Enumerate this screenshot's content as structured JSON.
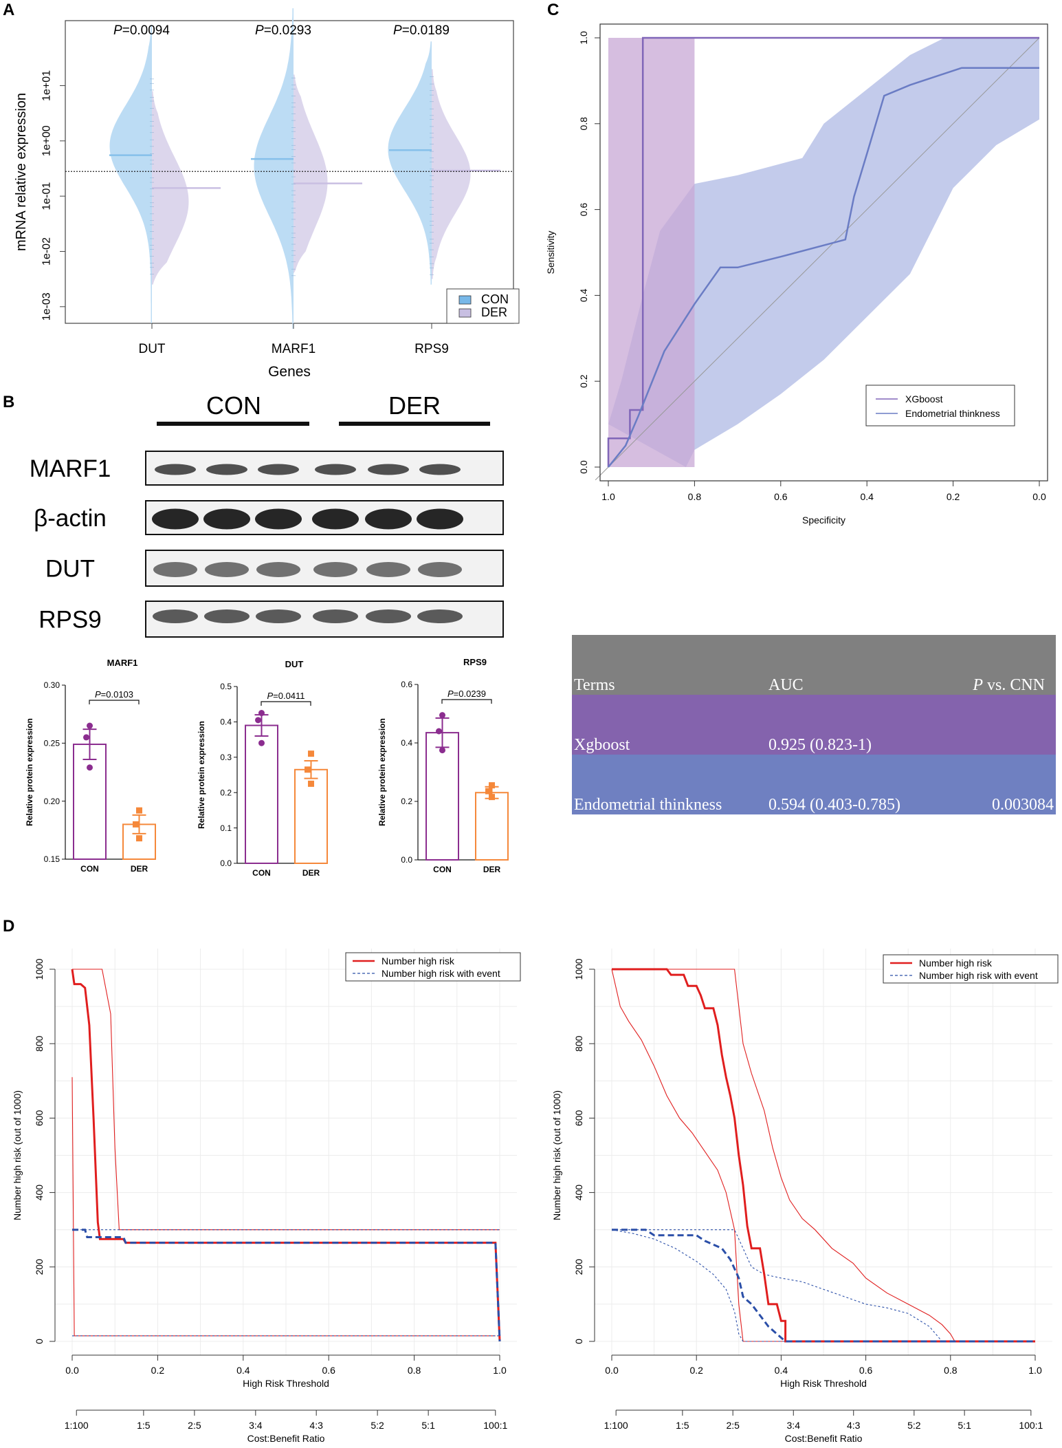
{
  "panel_labels": {
    "a": "A",
    "b": "B",
    "c": "C",
    "d": "D"
  },
  "chart_data": [
    {
      "id": "A",
      "type": "violin",
      "title": "",
      "xlabel": "Genes",
      "ylabel": "mRNA relative expression",
      "yscale": "log10",
      "ylim": [
        0.0005,
        150
      ],
      "y_ticks": [
        "1e-03",
        "1e-02",
        "1e-01",
        "1e+00",
        "1e+01"
      ],
      "categories": [
        "DUT",
        "MARF1",
        "RPS9"
      ],
      "pvalues": [
        "0.0094",
        "0.0293",
        "0.0189"
      ],
      "p_prefix": "P",
      "reference_line": 0.28,
      "series": [
        {
          "name": "CON",
          "color": "#bcdcf4",
          "median_color": "#86c0ea",
          "medians": [
            0.55,
            0.47,
            0.68
          ]
        },
        {
          "name": "DER",
          "color": "#dcd6ec",
          "median_color": "#c9bfe2",
          "medians": [
            0.14,
            0.17,
            0.29
          ]
        }
      ],
      "legend": [
        "CON",
        "DER"
      ]
    },
    {
      "id": "B-blot",
      "type": "image",
      "groups": [
        "CON",
        "DER"
      ],
      "rows": [
        "MARF1",
        "β-actin",
        "DUT",
        "RPS9"
      ]
    },
    {
      "id": "B-bars",
      "type": "bar",
      "ylabel": "Relative protein expression",
      "categories": [
        "CON",
        "DER"
      ],
      "colors": [
        "#8b2d8f",
        "#f5883a"
      ],
      "panels": [
        {
          "title": "MARF1",
          "ylim": [
            0.15,
            0.3
          ],
          "ticks": [
            "0.15",
            "0.20",
            "0.25",
            "0.30"
          ],
          "tickvals": [
            0.15,
            0.2,
            0.25,
            0.3
          ],
          "means": [
            0.249,
            0.18
          ],
          "sem": [
            0.013,
            0.008
          ],
          "points": [
            [
              0.265,
              0.255,
              0.229
            ],
            [
              0.192,
              0.18,
              0.168
            ]
          ],
          "pvalue": "0.0103"
        },
        {
          "title": "DUT",
          "ylim": [
            0.0,
            0.5
          ],
          "ticks": [
            "0.0",
            "0.1",
            "0.2",
            "0.3",
            "0.4",
            "0.5"
          ],
          "tickvals": [
            0.0,
            0.1,
            0.2,
            0.3,
            0.4,
            0.5
          ],
          "means": [
            0.39,
            0.265
          ],
          "sem": [
            0.03,
            0.025
          ],
          "points": [
            [
              0.425,
              0.405,
              0.34
            ],
            [
              0.31,
              0.265,
              0.225
            ]
          ],
          "pvalue": "0.0411"
        },
        {
          "title": "RPS9",
          "ylim": [
            0.0,
            0.6
          ],
          "ticks": [
            "0.0",
            "0.2",
            "0.4",
            "0.6"
          ],
          "tickvals": [
            0.0,
            0.2,
            0.4,
            0.6
          ],
          "means": [
            0.435,
            0.23
          ],
          "sem": [
            0.05,
            0.02
          ],
          "points": [
            [
              0.495,
              0.44,
              0.375
            ],
            [
              0.255,
              0.235,
              0.215
            ]
          ],
          "pvalue": "0.0239"
        }
      ]
    },
    {
      "id": "C",
      "type": "line",
      "xlabel": "Specificity",
      "ylabel": "Sensitivity",
      "xlim": [
        1.0,
        0.0
      ],
      "ylim": [
        0.0,
        1.0
      ],
      "x_ticks": [
        "1.0",
        "0.8",
        "0.6",
        "0.4",
        "0.2",
        "0.0"
      ],
      "y_ticks": [
        "0.0",
        "0.2",
        "0.4",
        "0.6",
        "0.8",
        "1.0"
      ],
      "series": [
        {
          "name": "XGboost",
          "color": "#8066b8",
          "ci_color": "#c8a8d6",
          "points": [
            [
              1,
              0
            ],
            [
              1,
              0.067
            ],
            [
              0.95,
              0.067
            ],
            [
              0.95,
              0.133
            ],
            [
              0.92,
              0.133
            ],
            [
              0.92,
              1
            ],
            [
              0,
              1
            ]
          ],
          "ci_band": {
            "x": [
              1,
              0.8
            ],
            "low": 0,
            "high": 1
          }
        },
        {
          "name": "Endometrial thinkness",
          "color": "#6a7cc4",
          "ci_color": "#b8c2e8",
          "points": [
            [
              1,
              0
            ],
            [
              0.96,
              0.05
            ],
            [
              0.93,
              0.12
            ],
            [
              0.87,
              0.27
            ],
            [
              0.8,
              0.38
            ],
            [
              0.74,
              0.465
            ],
            [
              0.7,
              0.465
            ],
            [
              0.6,
              0.49
            ],
            [
              0.45,
              0.53
            ],
            [
              0.43,
              0.63
            ],
            [
              0.4,
              0.73
            ],
            [
              0.36,
              0.865
            ],
            [
              0.3,
              0.89
            ],
            [
              0.18,
              0.93
            ],
            [
              0,
              0.93
            ]
          ],
          "ci_upper": [
            [
              1,
              0.1
            ],
            [
              0.97,
              0.2
            ],
            [
              0.92,
              0.4
            ],
            [
              0.88,
              0.55
            ],
            [
              0.8,
              0.66
            ],
            [
              0.7,
              0.68
            ],
            [
              0.55,
              0.72
            ],
            [
              0.5,
              0.8
            ],
            [
              0.4,
              0.88
            ],
            [
              0.3,
              0.96
            ],
            [
              0.22,
              1
            ],
            [
              0,
              1
            ]
          ],
          "ci_lower": [
            [
              0.82,
              0
            ],
            [
              0.8,
              0.04
            ],
            [
              0.7,
              0.1
            ],
            [
              0.6,
              0.17
            ],
            [
              0.5,
              0.25
            ],
            [
              0.4,
              0.35
            ],
            [
              0.3,
              0.45
            ],
            [
              0.25,
              0.55
            ],
            [
              0.2,
              0.65
            ],
            [
              0.1,
              0.75
            ],
            [
              0,
              0.81
            ]
          ]
        }
      ],
      "legend": [
        "XGboost",
        "Endometrial thinkness"
      ]
    },
    {
      "id": "C-table",
      "type": "table",
      "columns": [
        "Terms",
        "AUC",
        "P",
        "vs. CNN"
      ],
      "rows": [
        {
          "term": "Xgboost",
          "auc": "0.925 (0.823-1)",
          "p": ""
        },
        {
          "term": "Endometrial thinkness",
          "auc": "0.594 (0.403-0.785)",
          "p": "0.003084"
        }
      ],
      "colors": {
        "header": "#808080",
        "row1": "#8463ad",
        "row2": "#6f80c1"
      }
    },
    {
      "id": "D-left",
      "type": "line",
      "xlabel": "High Risk Threshold",
      "ylabel": "Number high risk (out of 1000)",
      "x2label": "Cost:Benefit Ratio",
      "xlim": [
        0,
        1
      ],
      "ylim": [
        0,
        1000
      ],
      "x_ticks": [
        "0.0",
        "0.2",
        "0.4",
        "0.6",
        "0.8",
        "1.0"
      ],
      "y_ticks": [
        "0",
        "200",
        "400",
        "600",
        "800",
        "1000"
      ],
      "x2_ticks": [
        "1:100",
        "1:5",
        "2:5",
        "3:4",
        "4:3",
        "5:2",
        "5:1",
        "100:1"
      ],
      "series": [
        {
          "name": "Number high risk",
          "color": "#e01e1e",
          "points": [
            [
              0,
              1000
            ],
            [
              0.005,
              960
            ],
            [
              0.02,
              960
            ],
            [
              0.03,
              950
            ],
            [
              0.04,
              850
            ],
            [
              0.05,
              600
            ],
            [
              0.06,
              320
            ],
            [
              0.065,
              275
            ],
            [
              0.12,
              275
            ],
            [
              0.125,
              265
            ],
            [
              0.99,
              265
            ],
            [
              1,
              0
            ]
          ],
          "ci_upper": [
            [
              0,
              1000
            ],
            [
              0.07,
              1000
            ],
            [
              0.09,
              880
            ],
            [
              0.1,
              520
            ],
            [
              0.11,
              300
            ],
            [
              1,
              300
            ]
          ],
          "ci_lower": [
            [
              0,
              710
            ],
            [
              0.005,
              15
            ],
            [
              0.99,
              15
            ]
          ]
        },
        {
          "name": "Number high risk with event",
          "color": "#2b4fa8",
          "points": [
            [
              0,
              300
            ],
            [
              0.03,
              300
            ],
            [
              0.035,
              280
            ],
            [
              0.12,
              280
            ],
            [
              0.125,
              265
            ],
            [
              0.99,
              265
            ],
            [
              1,
              0
            ]
          ],
          "ci_upper": [
            [
              0,
              300
            ],
            [
              0.1,
              300
            ],
            [
              1,
              300
            ]
          ],
          "ci_lower": [
            [
              0,
              15
            ],
            [
              1,
              15
            ]
          ]
        }
      ],
      "legend": [
        "Number high risk",
        "Number high risk with event"
      ]
    },
    {
      "id": "D-right",
      "type": "line",
      "xlabel": "High Risk Threshold",
      "ylabel": "Number high risk (out of 1000)",
      "x2label": "Cost:Benefit Ratio",
      "xlim": [
        0,
        1
      ],
      "ylim": [
        0,
        1000
      ],
      "x_ticks": [
        "0.0",
        "0.2",
        "0.4",
        "0.6",
        "0.8",
        "1.0"
      ],
      "y_ticks": [
        "0",
        "200",
        "400",
        "600",
        "800",
        "1000"
      ],
      "x2_ticks": [
        "1:100",
        "1:5",
        "2:5",
        "3:4",
        "4:3",
        "5:2",
        "5:1",
        "100:1"
      ],
      "series": [
        {
          "name": "Number high risk",
          "color": "#e01e1e",
          "points": [
            [
              0,
              1000
            ],
            [
              0.13,
              1000
            ],
            [
              0.14,
              985
            ],
            [
              0.17,
              985
            ],
            [
              0.18,
              955
            ],
            [
              0.2,
              955
            ],
            [
              0.21,
              930
            ],
            [
              0.22,
              895
            ],
            [
              0.24,
              895
            ],
            [
              0.25,
              850
            ],
            [
              0.26,
              770
            ],
            [
              0.27,
              710
            ],
            [
              0.28,
              660
            ],
            [
              0.29,
              600
            ],
            [
              0.3,
              500
            ],
            [
              0.31,
              420
            ],
            [
              0.32,
              310
            ],
            [
              0.33,
              250
            ],
            [
              0.35,
              250
            ],
            [
              0.36,
              180
            ],
            [
              0.37,
              100
            ],
            [
              0.39,
              100
            ],
            [
              0.4,
              55
            ],
            [
              0.41,
              55
            ],
            [
              0.41,
              0
            ],
            [
              1,
              0
            ]
          ],
          "ci_upper": [
            [
              0,
              1000
            ],
            [
              0.29,
              1000
            ],
            [
              0.3,
              900
            ],
            [
              0.31,
              800
            ],
            [
              0.33,
              720
            ],
            [
              0.36,
              620
            ],
            [
              0.38,
              520
            ],
            [
              0.4,
              440
            ],
            [
              0.42,
              380
            ],
            [
              0.45,
              330
            ],
            [
              0.48,
              300
            ],
            [
              0.52,
              250
            ],
            [
              0.57,
              210
            ],
            [
              0.6,
              170
            ],
            [
              0.65,
              130
            ],
            [
              0.7,
              100
            ],
            [
              0.75,
              70
            ],
            [
              0.78,
              45
            ],
            [
              0.8,
              20
            ],
            [
              0.81,
              0
            ],
            [
              1,
              0
            ]
          ],
          "ci_lower": [
            [
              0,
              1000
            ],
            [
              0.01,
              950
            ],
            [
              0.02,
              900
            ],
            [
              0.04,
              860
            ],
            [
              0.07,
              810
            ],
            [
              0.1,
              740
            ],
            [
              0.13,
              660
            ],
            [
              0.16,
              600
            ],
            [
              0.19,
              560
            ],
            [
              0.22,
              510
            ],
            [
              0.25,
              460
            ],
            [
              0.27,
              400
            ],
            [
              0.29,
              300
            ],
            [
              0.3,
              100
            ],
            [
              0.31,
              0
            ],
            [
              1,
              0
            ]
          ]
        },
        {
          "name": "Number high risk with event",
          "color": "#2b4fa8",
          "points": [
            [
              0,
              300
            ],
            [
              0.08,
              300
            ],
            [
              0.1,
              285
            ],
            [
              0.2,
              285
            ],
            [
              0.22,
              270
            ],
            [
              0.26,
              250
            ],
            [
              0.28,
              220
            ],
            [
              0.3,
              170
            ],
            [
              0.31,
              120
            ],
            [
              0.33,
              100
            ],
            [
              0.35,
              70
            ],
            [
              0.37,
              40
            ],
            [
              0.4,
              10
            ],
            [
              0.41,
              0
            ],
            [
              1,
              0
            ]
          ],
          "ci_upper": [
            [
              0,
              300
            ],
            [
              0.29,
              300
            ],
            [
              0.31,
              250
            ],
            [
              0.33,
              200
            ],
            [
              0.36,
              180
            ],
            [
              0.4,
              170
            ],
            [
              0.45,
              160
            ],
            [
              0.5,
              140
            ],
            [
              0.55,
              120
            ],
            [
              0.6,
              100
            ],
            [
              0.65,
              90
            ],
            [
              0.7,
              75
            ],
            [
              0.75,
              40
            ],
            [
              0.78,
              0
            ],
            [
              1,
              0
            ]
          ],
          "ci_lower": [
            [
              0,
              300
            ],
            [
              0.05,
              290
            ],
            [
              0.1,
              275
            ],
            [
              0.15,
              250
            ],
            [
              0.2,
              215
            ],
            [
              0.24,
              180
            ],
            [
              0.27,
              140
            ],
            [
              0.29,
              80
            ],
            [
              0.3,
              20
            ],
            [
              0.31,
              0
            ],
            [
              1,
              0
            ]
          ]
        }
      ],
      "legend": [
        "Number high risk",
        "Number high risk with event"
      ]
    }
  ]
}
